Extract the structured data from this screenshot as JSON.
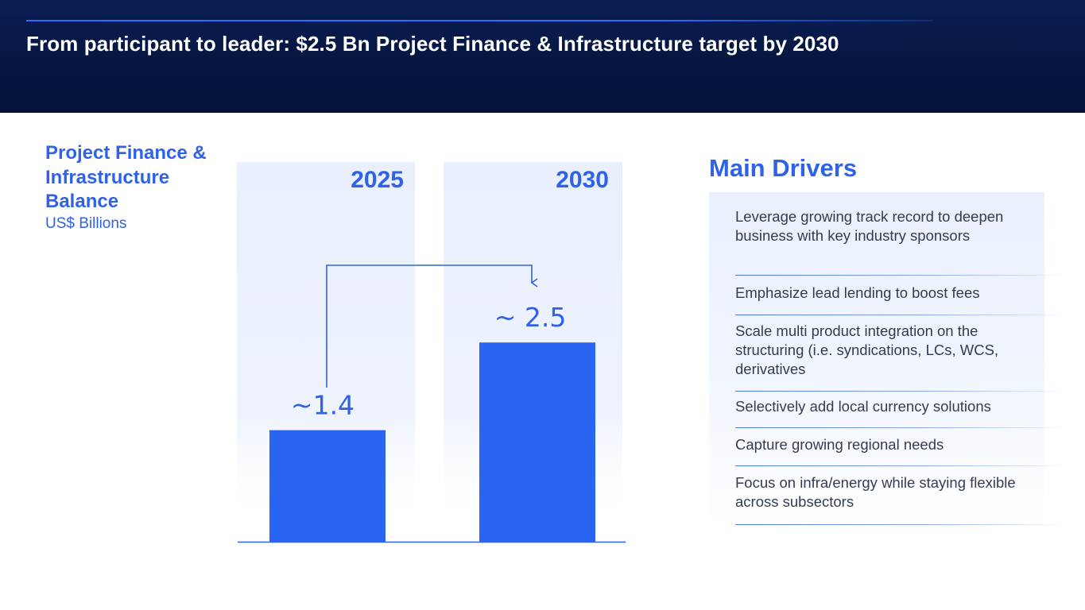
{
  "header": {
    "title": "From participant to leader: $2.5 Bn Project Finance & Infrastructure target by 2030"
  },
  "side": {
    "title": "Project Finance & Infrastructure Balance",
    "subtitle": "US$ Billions"
  },
  "chart_data": {
    "type": "bar",
    "title": "Project Finance & Infrastructure Balance",
    "ylabel": "US$ Billions",
    "xlabel": "",
    "categories": [
      "2025",
      "2030"
    ],
    "values": [
      1.4,
      2.5
    ],
    "data_labels": [
      "~1.4",
      "~ 2.5"
    ],
    "ylim": [
      0,
      3.2
    ],
    "grid": false,
    "annotations": [
      "arrow from 2025 bar to 2030 bar"
    ],
    "colors": {
      "bar": "#2a65f2",
      "column_bg": "#e9effd",
      "axis": "#2f62e6",
      "label": "#2f62e6"
    }
  },
  "drivers": {
    "title": "Main Drivers",
    "items": [
      "Leverage growing track record to deepen business with key industry sponsors",
      "Emphasize lead lending to boost fees",
      "Scale multi product integration on the structuring (i.e. syndications, LCs, WCS, derivatives",
      "Selectively add local currency solutions",
      "Capture growing regional needs",
      "Focus on infra/energy while staying flexible across subsectors"
    ]
  }
}
